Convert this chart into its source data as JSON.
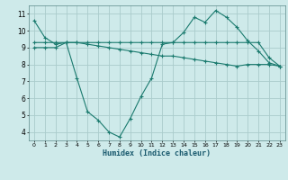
{
  "xlabel": "Humidex (Indice chaleur)",
  "bg_color": "#ceeaea",
  "grid_color": "#aacccc",
  "line_color": "#1a7a6e",
  "lines": [
    {
      "x": [
        0,
        1,
        2,
        3,
        4,
        5,
        6,
        7,
        8,
        9,
        10,
        11,
        12,
        13,
        14,
        15,
        16,
        17,
        18,
        19,
        20,
        21,
        22,
        23
      ],
      "y": [
        10.6,
        9.6,
        9.2,
        9.3,
        7.2,
        5.2,
        4.7,
        4.0,
        3.7,
        4.8,
        6.1,
        7.2,
        9.2,
        9.3,
        9.9,
        10.8,
        10.5,
        11.2,
        10.8,
        10.2,
        9.4,
        8.8,
        8.1,
        7.9
      ]
    },
    {
      "x": [
        0,
        1,
        2,
        3,
        4,
        5,
        6,
        7,
        8,
        9,
        10,
        11,
        12,
        13,
        14,
        15,
        16,
        17,
        18,
        19,
        20,
        21,
        22,
        23
      ],
      "y": [
        9.3,
        9.3,
        9.3,
        9.3,
        9.3,
        9.3,
        9.3,
        9.3,
        9.3,
        9.3,
        9.3,
        9.3,
        9.3,
        9.3,
        9.3,
        9.3,
        9.3,
        9.3,
        9.3,
        9.3,
        9.3,
        9.3,
        8.4,
        7.9
      ]
    },
    {
      "x": [
        0,
        1,
        2,
        3,
        4,
        5,
        6,
        7,
        8,
        9,
        10,
        11,
        12,
        13,
        14,
        15,
        16,
        17,
        18,
        19,
        20,
        21,
        22,
        23
      ],
      "y": [
        9.0,
        9.0,
        9.0,
        9.3,
        9.3,
        9.2,
        9.1,
        9.0,
        8.9,
        8.8,
        8.7,
        8.6,
        8.5,
        8.5,
        8.4,
        8.3,
        8.2,
        8.1,
        8.0,
        7.9,
        8.0,
        8.0,
        8.0,
        7.9
      ]
    }
  ],
  "ylim": [
    3.5,
    11.5
  ],
  "xlim": [
    -0.5,
    23.5
  ],
  "yticks": [
    4,
    5,
    6,
    7,
    8,
    9,
    10,
    11
  ],
  "xticks": [
    0,
    1,
    2,
    3,
    4,
    5,
    6,
    7,
    8,
    9,
    10,
    11,
    12,
    13,
    14,
    15,
    16,
    17,
    18,
    19,
    20,
    21,
    22,
    23
  ],
  "xlabel_fontsize": 6.0,
  "tick_fontsize_x": 4.5,
  "tick_fontsize_y": 5.5
}
